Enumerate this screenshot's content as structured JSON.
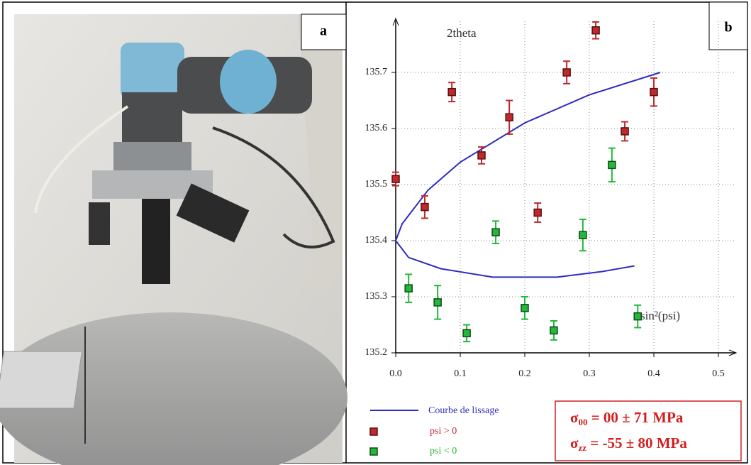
{
  "chart_data": {
    "type": "scatter",
    "panel_labels": [
      "a",
      "b"
    ],
    "ylabel": "2theta",
    "xlabel": "sin²(psi)",
    "xlim": [
      0,
      0.5
    ],
    "ylim": [
      135.2,
      135.8
    ],
    "xticks": [
      {
        "value": 0,
        "label": "0.0"
      },
      0.1,
      0.2,
      0.3,
      0.4,
      0.5
    ],
    "yticks": [
      135.2,
      135.3,
      135.4,
      135.5,
      135.6,
      135.7
    ],
    "grid": true,
    "curve": {
      "name": "Courbe de lissage",
      "color": "#2c2cc0",
      "x": [
        0.41,
        0.3,
        0.2,
        0.1,
        0.05,
        0.01,
        0,
        0.02,
        0.07,
        0.15,
        0.25,
        0.32,
        0.37
      ],
      "values": [
        135.7,
        135.66,
        135.61,
        135.54,
        135.49,
        135.43,
        135.4,
        135.37,
        135.35,
        135.335,
        135.335,
        135.345,
        135.355
      ]
    },
    "series": [
      {
        "name": "psi > 0",
        "color": "#c0282c",
        "edge": "#5a1010",
        "x": [
          0.0,
          0.045,
          0.087,
          0.133,
          0.176,
          0.22,
          0.265,
          0.31,
          0.355,
          0.4
        ],
        "values": [
          135.51,
          135.46,
          135.665,
          135.552,
          135.62,
          135.45,
          135.7,
          135.775,
          135.595,
          135.665
        ],
        "errors": [
          0.012,
          0.02,
          0.017,
          0.015,
          0.03,
          0.017,
          0.02,
          0.015,
          0.017,
          0.025
        ]
      },
      {
        "name": "psi < 0",
        "color": "#22b83a",
        "edge": "#104a18",
        "x": [
          0.02,
          0.065,
          0.11,
          0.155,
          0.2,
          0.245,
          0.29,
          0.335,
          0.375
        ],
        "values": [
          135.315,
          135.29,
          135.235,
          135.415,
          135.28,
          135.24,
          135.41,
          135.535,
          135.265
        ],
        "errors": [
          0.025,
          0.03,
          0.015,
          0.02,
          0.02,
          0.017,
          0.028,
          0.03,
          0.02
        ]
      }
    ],
    "annotations": [
      {
        "symbol": "σ",
        "sub": "00",
        "text": " = 00 ± 71 MPa"
      },
      {
        "symbol": "σ",
        "sub": "zz",
        "text": " = -55 ± 80 MPa"
      }
    ]
  }
}
